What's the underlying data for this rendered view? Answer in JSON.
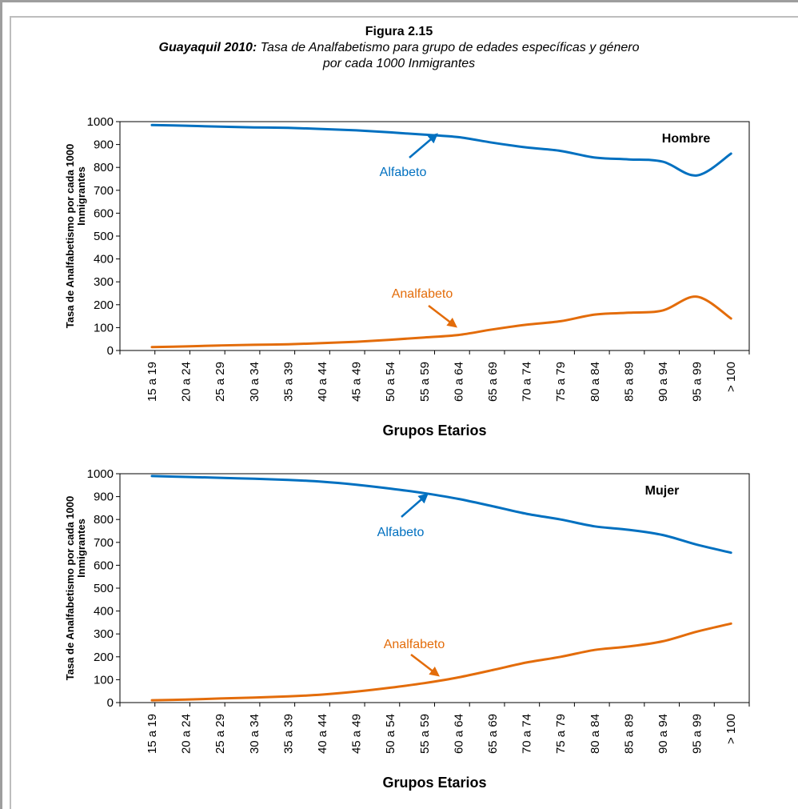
{
  "figure": {
    "number": "Figura 2.15",
    "subtitle_bold": "Guayaquil 2010:",
    "subtitle_rest": " Tasa de Analfabetismo para grupo de edades específicas y género",
    "subtitle_line2": "por cada 1000 Inmigrantes"
  },
  "colors": {
    "alfabeto": "#0070c0",
    "analfabeto": "#e36c0a"
  },
  "chart_data": [
    {
      "type": "line",
      "panel_label": "Hombre",
      "ylabel_line1": "Tasa de Analfabetismo por cada 1000",
      "ylabel_line2": "Inmigrantes",
      "xlabel": "Grupos Etarios",
      "ylim": [
        0,
        1000
      ],
      "yticks": [
        0,
        100,
        200,
        300,
        400,
        500,
        600,
        700,
        800,
        900,
        1000
      ],
      "categories": [
        "15 a 19",
        "20 a 24",
        "25 a 29",
        "30 a 34",
        "35 a 39",
        "40 a 44",
        "45 a 49",
        "50 a 54",
        "55 a 59",
        "60 a 64",
        "65 a 69",
        "70 a 74",
        "75 a 79",
        "80 a 84",
        "85 a 89",
        "90 a 94",
        "95 a 99",
        "> 100"
      ],
      "series": [
        {
          "name": "Alfabeto",
          "values": [
            985,
            982,
            978,
            975,
            973,
            968,
            962,
            953,
            943,
            932,
            908,
            887,
            872,
            843,
            835,
            825,
            765,
            860
          ]
        },
        {
          "name": "Analfabeto",
          "values": [
            15,
            18,
            22,
            25,
            27,
            32,
            38,
            47,
            57,
            68,
            92,
            113,
            128,
            157,
            165,
            175,
            235,
            140
          ]
        }
      ]
    },
    {
      "type": "line",
      "panel_label": "Mujer",
      "ylabel_line1": "Tasa de Analfabetismo por cada 1000",
      "ylabel_line2": "Inmigrantes",
      "xlabel": "Grupos Etarios",
      "ylim": [
        0,
        1000
      ],
      "yticks": [
        0,
        100,
        200,
        300,
        400,
        500,
        600,
        700,
        800,
        900,
        1000
      ],
      "categories": [
        "15 a 19",
        "20 a 24",
        "25 a 29",
        "30 a 34",
        "35 a 39",
        "40 a 44",
        "45 a 49",
        "50 a 54",
        "55 a 59",
        "60 a 64",
        "65 a 69",
        "70 a 74",
        "75 a 79",
        "80 a 84",
        "85 a 89",
        "90 a 94",
        "95 a 99",
        "> 100"
      ],
      "series": [
        {
          "name": "Alfabeto",
          "values": [
            990,
            986,
            982,
            978,
            973,
            965,
            952,
            935,
            915,
            890,
            858,
            825,
            800,
            770,
            755,
            732,
            690,
            655
          ]
        },
        {
          "name": "Analfabeto",
          "values": [
            10,
            13,
            18,
            22,
            27,
            35,
            48,
            65,
            85,
            110,
            142,
            175,
            200,
            230,
            245,
            268,
            310,
            345
          ]
        }
      ]
    }
  ]
}
